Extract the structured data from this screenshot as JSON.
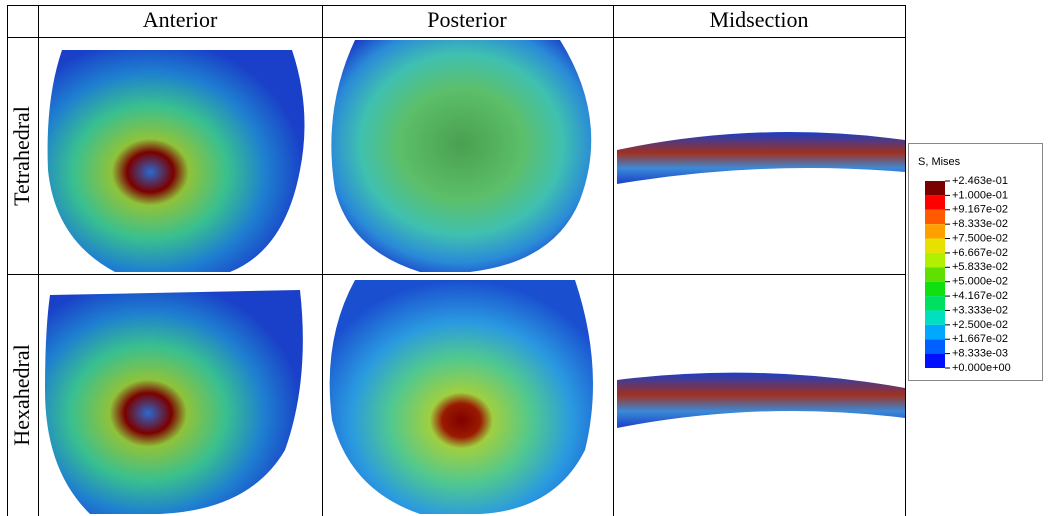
{
  "table": {
    "columns": [
      "Anterior",
      "Posterior",
      "Midsection"
    ],
    "rows": [
      "Tetrahedral",
      "Hexahedral"
    ]
  },
  "legend": {
    "title": "S, Mises",
    "labels": [
      "+2.463e-01",
      "+1.000e-01",
      "+9.167e-02",
      "+8.333e-02",
      "+7.500e-02",
      "+6.667e-02",
      "+5.833e-02",
      "+5.000e-02",
      "+4.167e-02",
      "+3.333e-02",
      "+2.500e-02",
      "+1.667e-02",
      "+8.333e-03",
      "+0.000e+00"
    ]
  }
}
